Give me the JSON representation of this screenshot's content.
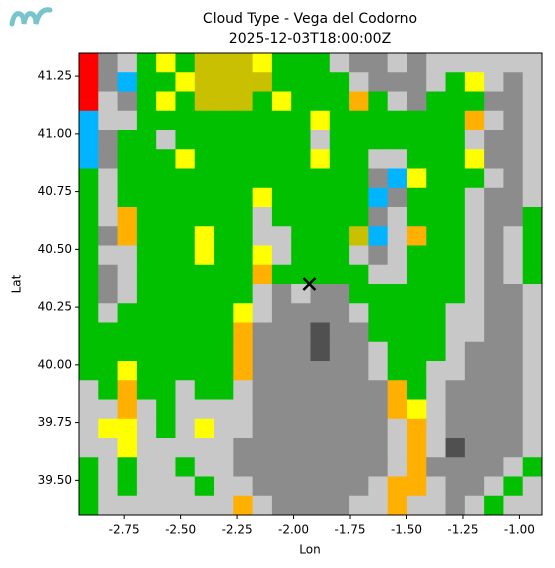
{
  "chart_data": {
    "type": "heatmap",
    "title": "Cloud Type - Vega del Codorno",
    "subtitle": "2025-12-03T18:00:00Z",
    "x_label": "Lon",
    "y_label": "Lat",
    "xlim": [
      -2.95,
      -0.9
    ],
    "ylim": [
      39.35,
      41.35
    ],
    "xticks": [
      -2.75,
      {
        "value": -2.5,
        "label": "-2.50"
      },
      -2.25,
      {
        "value": -2.0,
        "label": "-2.00"
      },
      -1.75,
      {
        "value": -1.5,
        "label": "-1.50"
      },
      -1.25,
      {
        "value": -1.0,
        "label": "-1.00"
      }
    ],
    "yticks": [
      {
        "value": 39.5,
        "label": "39.50"
      },
      39.75,
      {
        "value": 40.0,
        "label": "40.00"
      },
      40.25,
      {
        "value": 40.5,
        "label": "40.50"
      },
      40.75,
      {
        "value": 41.0,
        "label": "41.00"
      },
      41.25
    ],
    "colors": [
      "#00c000",
      "#c8c8c8",
      "#8c8c8c",
      "#505050",
      "#ffff00",
      "#ffb000",
      "#c8c000",
      "#00b4ff",
      "#ff0000"
    ],
    "marker": {
      "x": -1.93,
      "y": 40.35,
      "color": "#000000"
    },
    "z": [
      [
        8,
        2,
        1,
        0,
        4,
        0,
        6,
        6,
        6,
        4,
        0,
        0,
        0,
        1,
        2,
        2,
        1,
        2,
        1,
        1,
        1,
        1,
        1,
        1
      ],
      [
        8,
        2,
        7,
        0,
        0,
        4,
        6,
        6,
        6,
        6,
        0,
        0,
        0,
        0,
        1,
        2,
        2,
        2,
        1,
        0,
        4,
        1,
        2,
        1
      ],
      [
        8,
        1,
        2,
        0,
        4,
        0,
        6,
        6,
        6,
        0,
        4,
        0,
        0,
        0,
        5,
        0,
        1,
        2,
        0,
        0,
        0,
        2,
        2,
        1
      ],
      [
        7,
        1,
        1,
        0,
        0,
        0,
        0,
        0,
        0,
        0,
        0,
        0,
        4,
        0,
        0,
        0,
        0,
        0,
        0,
        0,
        5,
        1,
        2,
        1
      ],
      [
        7,
        2,
        0,
        0,
        1,
        0,
        0,
        0,
        0,
        0,
        0,
        0,
        1,
        0,
        0,
        0,
        0,
        0,
        0,
        0,
        1,
        2,
        2,
        1
      ],
      [
        7,
        2,
        0,
        0,
        0,
        4,
        0,
        0,
        0,
        0,
        0,
        0,
        4,
        0,
        0,
        1,
        1,
        0,
        0,
        0,
        4,
        2,
        2,
        1
      ],
      [
        0,
        1,
        0,
        0,
        0,
        0,
        0,
        0,
        0,
        0,
        0,
        0,
        0,
        0,
        0,
        2,
        7,
        4,
        0,
        0,
        0,
        1,
        2,
        1
      ],
      [
        0,
        1,
        0,
        0,
        0,
        0,
        0,
        0,
        0,
        4,
        0,
        0,
        0,
        0,
        0,
        7,
        2,
        0,
        0,
        0,
        1,
        2,
        2,
        1
      ],
      [
        0,
        1,
        5,
        0,
        0,
        0,
        0,
        0,
        0,
        1,
        0,
        0,
        0,
        0,
        0,
        2,
        1,
        0,
        0,
        0,
        1,
        2,
        2,
        0
      ],
      [
        0,
        2,
        5,
        0,
        0,
        0,
        4,
        0,
        0,
        1,
        1,
        0,
        0,
        0,
        6,
        7,
        1,
        5,
        0,
        0,
        1,
        2,
        1,
        0
      ],
      [
        0,
        1,
        1,
        0,
        0,
        0,
        4,
        0,
        0,
        4,
        1,
        0,
        0,
        0,
        1,
        2,
        1,
        0,
        0,
        0,
        1,
        2,
        1,
        0
      ],
      [
        0,
        2,
        1,
        0,
        0,
        0,
        0,
        0,
        0,
        5,
        0,
        0,
        0,
        0,
        0,
        1,
        1,
        0,
        0,
        0,
        1,
        2,
        1,
        0
      ],
      [
        0,
        2,
        1,
        0,
        0,
        0,
        0,
        0,
        0,
        1,
        2,
        1,
        2,
        2,
        0,
        0,
        0,
        0,
        0,
        0,
        1,
        2,
        2,
        1
      ],
      [
        0,
        1,
        0,
        0,
        0,
        0,
        0,
        0,
        4,
        1,
        2,
        2,
        2,
        2,
        1,
        0,
        0,
        0,
        0,
        1,
        1,
        2,
        2,
        1
      ],
      [
        0,
        0,
        0,
        0,
        0,
        0,
        0,
        0,
        5,
        2,
        2,
        2,
        3,
        2,
        2,
        0,
        0,
        0,
        0,
        1,
        1,
        2,
        2,
        1
      ],
      [
        0,
        0,
        0,
        0,
        0,
        0,
        0,
        0,
        5,
        2,
        2,
        2,
        3,
        2,
        2,
        1,
        0,
        0,
        0,
        1,
        2,
        2,
        2,
        1
      ],
      [
        0,
        0,
        4,
        0,
        0,
        0,
        0,
        0,
        5,
        2,
        2,
        2,
        2,
        2,
        2,
        1,
        0,
        0,
        1,
        1,
        2,
        2,
        2,
        1
      ],
      [
        1,
        0,
        5,
        0,
        0,
        1,
        0,
        0,
        1,
        2,
        2,
        2,
        2,
        2,
        2,
        2,
        5,
        0,
        1,
        2,
        2,
        2,
        2,
        1
      ],
      [
        1,
        1,
        5,
        1,
        0,
        1,
        1,
        1,
        1,
        2,
        2,
        2,
        2,
        2,
        2,
        2,
        5,
        4,
        1,
        2,
        2,
        2,
        2,
        1
      ],
      [
        1,
        4,
        4,
        1,
        0,
        1,
        4,
        1,
        1,
        2,
        2,
        2,
        2,
        2,
        2,
        2,
        1,
        5,
        1,
        2,
        2,
        2,
        2,
        1
      ],
      [
        1,
        1,
        4,
        1,
        1,
        1,
        1,
        1,
        2,
        2,
        2,
        2,
        2,
        2,
        2,
        2,
        1,
        5,
        1,
        3,
        2,
        2,
        2,
        1
      ],
      [
        0,
        1,
        0,
        1,
        1,
        0,
        1,
        1,
        2,
        2,
        2,
        2,
        2,
        2,
        2,
        2,
        1,
        5,
        2,
        2,
        2,
        2,
        1,
        0
      ],
      [
        0,
        1,
        0,
        1,
        1,
        1,
        0,
        1,
        1,
        2,
        2,
        2,
        2,
        2,
        2,
        1,
        5,
        5,
        1,
        2,
        2,
        1,
        0,
        1
      ],
      [
        0,
        1,
        1,
        1,
        1,
        1,
        1,
        1,
        5,
        1,
        2,
        2,
        2,
        2,
        1,
        1,
        5,
        1,
        1,
        2,
        1,
        0,
        1,
        1
      ]
    ]
  }
}
